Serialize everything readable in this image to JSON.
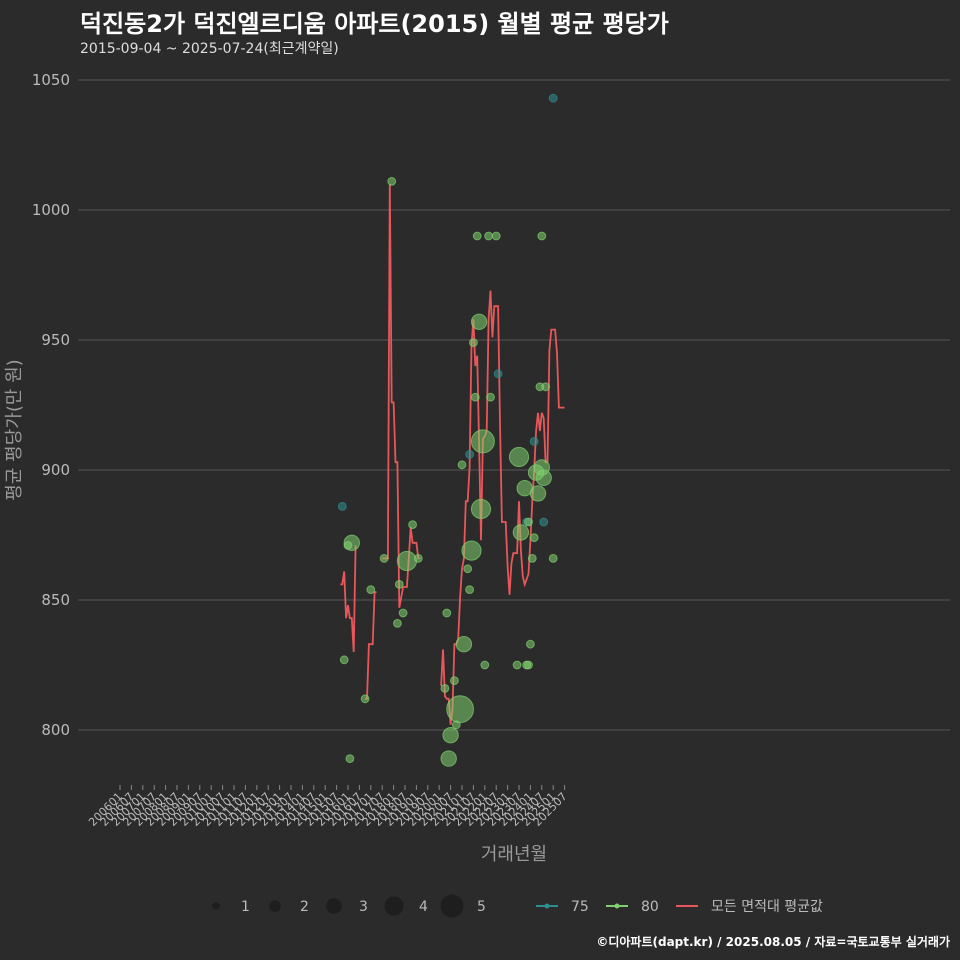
{
  "title": "덕진동2가 덕진엘르디움 아파트(2015) 월별 평균 평당가",
  "subtitle": "2015-09-04 ~ 2025-07-24(최근계약일)",
  "footer": "©디아파트(dapt.kr) / 2025.08.05 / 자료=국토교통부 실거래가",
  "colors": {
    "background": "#2b2b2b",
    "grid": "#555555",
    "line": "#e8575a",
    "s75": "#2f8f8f",
    "s80": "#7fd06e"
  },
  "chart_data": {
    "type": "line+scatter",
    "xlabel": "거래년월",
    "ylabel": "평균 평당가(만 원)",
    "ylim": [
      780,
      1060
    ],
    "yticks": [
      800,
      850,
      900,
      950,
      1000,
      1050
    ],
    "xticks": [
      "200601",
      "200607",
      "200701",
      "200707",
      "200801",
      "200807",
      "200901",
      "200907",
      "201001",
      "201007",
      "201101",
      "201107",
      "201201",
      "201207",
      "201301",
      "201307",
      "201401",
      "201407",
      "201501",
      "201507",
      "201601",
      "201607",
      "201701",
      "201707",
      "201801",
      "201807",
      "201901",
      "201907",
      "202001",
      "202007",
      "202101",
      "202107",
      "202201",
      "202207",
      "202301",
      "202307",
      "202401",
      "202407",
      "202501",
      "202507"
    ],
    "legend_size": {
      "labels": [
        "1",
        "2",
        "3",
        "4",
        "5"
      ],
      "values": [
        1,
        2,
        3,
        4,
        5
      ]
    },
    "legend_series": [
      {
        "name": "75",
        "color": "#2f8f8f"
      },
      {
        "name": "80",
        "color": "#7fd06e"
      },
      {
        "name": "모든 면적대 평균값",
        "color": "#e8575a"
      }
    ],
    "avg_line": [
      {
        "x": "2015-09",
        "y": 856
      },
      {
        "x": "2015-10",
        "y": 856
      },
      {
        "x": "2015-11",
        "y": 861
      },
      {
        "x": "2015-12",
        "y": 843
      },
      {
        "x": "2016-01",
        "y": 848
      },
      {
        "x": "2016-02",
        "y": 843
      },
      {
        "x": "2016-03",
        "y": 843
      },
      {
        "x": "2016-04",
        "y": 830
      },
      {
        "x": "2016-05",
        "y": 871
      },
      {
        "x": "2016-10",
        "y": 812
      },
      {
        "x": "2016-11",
        "y": 812
      },
      {
        "x": "2016-12",
        "y": 833
      },
      {
        "x": "2017-01",
        "y": 833
      },
      {
        "x": "2017-02",
        "y": 833
      },
      {
        "x": "2017-03",
        "y": 853
      },
      {
        "x": "2017-04",
        "y": 853
      },
      {
        "x": "2017-07",
        "y": 866
      },
      {
        "x": "2017-08",
        "y": 866
      },
      {
        "x": "2017-09",
        "y": 866
      },
      {
        "x": "2017-10",
        "y": 866
      },
      {
        "x": "2017-11",
        "y": 1010
      },
      {
        "x": "2017-12",
        "y": 926
      },
      {
        "x": "2018-01",
        "y": 926
      },
      {
        "x": "2018-02",
        "y": 903
      },
      {
        "x": "2018-03",
        "y": 903
      },
      {
        "x": "2018-04",
        "y": 847
      },
      {
        "x": "2018-05",
        "y": 851
      },
      {
        "x": "2018-06",
        "y": 855
      },
      {
        "x": "2018-07",
        "y": 855
      },
      {
        "x": "2018-08",
        "y": 855
      },
      {
        "x": "2018-09",
        "y": 866
      },
      {
        "x": "2018-10",
        "y": 878
      },
      {
        "x": "2018-11",
        "y": 872
      },
      {
        "x": "2018-12",
        "y": 872
      },
      {
        "x": "2019-01",
        "y": 872
      },
      {
        "x": "2019-02",
        "y": 866
      },
      {
        "x": "2019-03",
        "y": 866
      },
      {
        "x": "2020-02",
        "y": 817
      },
      {
        "x": "2020-03",
        "y": 831
      },
      {
        "x": "2020-04",
        "y": 813
      },
      {
        "x": "2020-05",
        "y": 812
      },
      {
        "x": "2020-06",
        "y": 812
      },
      {
        "x": "2020-07",
        "y": 802
      },
      {
        "x": "2020-08",
        "y": 808
      },
      {
        "x": "2020-09",
        "y": 833
      },
      {
        "x": "2020-10",
        "y": 833
      },
      {
        "x": "2020-11",
        "y": 835
      },
      {
        "x": "2020-12",
        "y": 851
      },
      {
        "x": "2021-01",
        "y": 862
      },
      {
        "x": "2021-02",
        "y": 866
      },
      {
        "x": "2021-03",
        "y": 888
      },
      {
        "x": "2021-04",
        "y": 888
      },
      {
        "x": "2021-05",
        "y": 901
      },
      {
        "x": "2021-06",
        "y": 948
      },
      {
        "x": "2021-07",
        "y": 958
      },
      {
        "x": "2021-08",
        "y": 940
      },
      {
        "x": "2021-09",
        "y": 944
      },
      {
        "x": "2021-10",
        "y": 910
      },
      {
        "x": "2021-11",
        "y": 873
      },
      {
        "x": "2021-12",
        "y": 912
      },
      {
        "x": "2022-01",
        "y": 913
      },
      {
        "x": "2022-02",
        "y": 915
      },
      {
        "x": "2022-03",
        "y": 958
      },
      {
        "x": "2022-04",
        "y": 969
      },
      {
        "x": "2022-05",
        "y": 951
      },
      {
        "x": "2022-06",
        "y": 963
      },
      {
        "x": "2022-07",
        "y": 963
      },
      {
        "x": "2022-08",
        "y": 963
      },
      {
        "x": "2022-09",
        "y": 918
      },
      {
        "x": "2022-10",
        "y": 880
      },
      {
        "x": "2022-11",
        "y": 880
      },
      {
        "x": "2022-12",
        "y": 880
      },
      {
        "x": "2023-01",
        "y": 863
      },
      {
        "x": "2023-02",
        "y": 852
      },
      {
        "x": "2023-03",
        "y": 864
      },
      {
        "x": "2023-04",
        "y": 868
      },
      {
        "x": "2023-05",
        "y": 868
      },
      {
        "x": "2023-06",
        "y": 868
      },
      {
        "x": "2023-07",
        "y": 888
      },
      {
        "x": "2023-08",
        "y": 869
      },
      {
        "x": "2023-09",
        "y": 859
      },
      {
        "x": "2023-10",
        "y": 856
      },
      {
        "x": "2023-11",
        "y": 858
      },
      {
        "x": "2023-12",
        "y": 860
      },
      {
        "x": "2024-01",
        "y": 873
      },
      {
        "x": "2024-02",
        "y": 888
      },
      {
        "x": "2024-03",
        "y": 900
      },
      {
        "x": "2024-04",
        "y": 915
      },
      {
        "x": "2024-05",
        "y": 922
      },
      {
        "x": "2024-06",
        "y": 915
      },
      {
        "x": "2024-07",
        "y": 922
      },
      {
        "x": "2024-08",
        "y": 920
      },
      {
        "x": "2024-09",
        "y": 903
      },
      {
        "x": "2024-10",
        "y": 903
      },
      {
        "x": "2024-11",
        "y": 946
      },
      {
        "x": "2024-12",
        "y": 954
      },
      {
        "x": "2025-01",
        "y": 954
      },
      {
        "x": "2025-02",
        "y": 954
      },
      {
        "x": "2025-03",
        "y": 945
      },
      {
        "x": "2025-04",
        "y": 924
      },
      {
        "x": "2025-05",
        "y": 924
      },
      {
        "x": "2025-06",
        "y": 924
      },
      {
        "x": "2025-07",
        "y": 924
      }
    ],
    "points": [
      {
        "x": "2015-10",
        "y": 886,
        "size": 1,
        "area": "75"
      },
      {
        "x": "2015-11",
        "y": 827,
        "size": 1,
        "area": "80"
      },
      {
        "x": "2016-01",
        "y": 871,
        "size": 1,
        "area": "80"
      },
      {
        "x": "2016-02",
        "y": 789,
        "size": 1,
        "area": "80"
      },
      {
        "x": "2016-03",
        "y": 872,
        "size": 3,
        "area": "80"
      },
      {
        "x": "2016-10",
        "y": 812,
        "size": 1,
        "area": "80"
      },
      {
        "x": "2017-01",
        "y": 854,
        "size": 1,
        "area": "80"
      },
      {
        "x": "2017-08",
        "y": 866,
        "size": 1,
        "area": "80"
      },
      {
        "x": "2017-12",
        "y": 1011,
        "size": 1,
        "area": "80"
      },
      {
        "x": "2018-03",
        "y": 841,
        "size": 1,
        "area": "80"
      },
      {
        "x": "2018-04",
        "y": 856,
        "size": 1,
        "area": "80"
      },
      {
        "x": "2018-06",
        "y": 845,
        "size": 1,
        "area": "80"
      },
      {
        "x": "2018-08",
        "y": 865,
        "size": 4,
        "area": "80"
      },
      {
        "x": "2018-11",
        "y": 879,
        "size": 1,
        "area": "80"
      },
      {
        "x": "2019-02",
        "y": 866,
        "size": 1,
        "area": "80"
      },
      {
        "x": "2020-04",
        "y": 816,
        "size": 1,
        "area": "80"
      },
      {
        "x": "2020-05",
        "y": 845,
        "size": 1,
        "area": "80"
      },
      {
        "x": "2020-06",
        "y": 789,
        "size": 3,
        "area": "80"
      },
      {
        "x": "2020-07",
        "y": 798,
        "size": 3,
        "area": "80"
      },
      {
        "x": "2020-09",
        "y": 819,
        "size": 1,
        "area": "80"
      },
      {
        "x": "2020-10",
        "y": 802,
        "size": 1,
        "area": "80"
      },
      {
        "x": "2020-12",
        "y": 808,
        "size": 6,
        "area": "80"
      },
      {
        "x": "2021-01",
        "y": 902,
        "size": 1,
        "area": "80"
      },
      {
        "x": "2021-02",
        "y": 833,
        "size": 3,
        "area": "80"
      },
      {
        "x": "2021-04",
        "y": 862,
        "size": 1,
        "area": "80"
      },
      {
        "x": "2021-05",
        "y": 854,
        "size": 1,
        "area": "80"
      },
      {
        "x": "2021-05",
        "y": 906,
        "size": 1,
        "area": "75"
      },
      {
        "x": "2021-06",
        "y": 869,
        "size": 4,
        "area": "80"
      },
      {
        "x": "2021-07",
        "y": 949,
        "size": 1,
        "area": "80"
      },
      {
        "x": "2021-08",
        "y": 928,
        "size": 1,
        "area": "80"
      },
      {
        "x": "2021-09",
        "y": 990,
        "size": 1,
        "area": "80"
      },
      {
        "x": "2021-10",
        "y": 957,
        "size": 3,
        "area": "80"
      },
      {
        "x": "2021-11",
        "y": 885,
        "size": 4,
        "area": "80"
      },
      {
        "x": "2021-12",
        "y": 911,
        "size": 5,
        "area": "80"
      },
      {
        "x": "2022-01",
        "y": 825,
        "size": 1,
        "area": "80"
      },
      {
        "x": "2022-03",
        "y": 990,
        "size": 1,
        "area": "80"
      },
      {
        "x": "2022-04",
        "y": 928,
        "size": 1,
        "area": "80"
      },
      {
        "x": "2022-07",
        "y": 990,
        "size": 1,
        "area": "80"
      },
      {
        "x": "2022-08",
        "y": 937,
        "size": 1,
        "area": "75"
      },
      {
        "x": "2023-06",
        "y": 825,
        "size": 1,
        "area": "80"
      },
      {
        "x": "2023-07",
        "y": 905,
        "size": 4,
        "area": "80"
      },
      {
        "x": "2023-08",
        "y": 876,
        "size": 3,
        "area": "80"
      },
      {
        "x": "2023-10",
        "y": 893,
        "size": 3,
        "area": "80"
      },
      {
        "x": "2023-11",
        "y": 880,
        "size": 1,
        "area": "75"
      },
      {
        "x": "2023-12",
        "y": 880,
        "size": 1,
        "area": "80"
      },
      {
        "x": "2023-11",
        "y": 825,
        "size": 1,
        "area": "80"
      },
      {
        "x": "2023-12",
        "y": 825,
        "size": 1,
        "area": "80"
      },
      {
        "x": "2024-01",
        "y": 833,
        "size": 1,
        "area": "80"
      },
      {
        "x": "2024-02",
        "y": 866,
        "size": 1,
        "area": "80"
      },
      {
        "x": "2024-03",
        "y": 874,
        "size": 1,
        "area": "80"
      },
      {
        "x": "2024-03",
        "y": 911,
        "size": 1,
        "area": "75"
      },
      {
        "x": "2024-04",
        "y": 899,
        "size": 3,
        "area": "80"
      },
      {
        "x": "2024-05",
        "y": 891,
        "size": 3,
        "area": "80"
      },
      {
        "x": "2024-06",
        "y": 932,
        "size": 1,
        "area": "80"
      },
      {
        "x": "2024-07",
        "y": 990,
        "size": 1,
        "area": "80"
      },
      {
        "x": "2024-07",
        "y": 901,
        "size": 3,
        "area": "80"
      },
      {
        "x": "2024-08",
        "y": 897,
        "size": 3,
        "area": "80"
      },
      {
        "x": "2024-08",
        "y": 880,
        "size": 1,
        "area": "75"
      },
      {
        "x": "2024-09",
        "y": 932,
        "size": 1,
        "area": "80"
      },
      {
        "x": "2025-01",
        "y": 866,
        "size": 1,
        "area": "80"
      },
      {
        "x": "2025-01",
        "y": 1043,
        "size": 1,
        "area": "75"
      }
    ]
  }
}
